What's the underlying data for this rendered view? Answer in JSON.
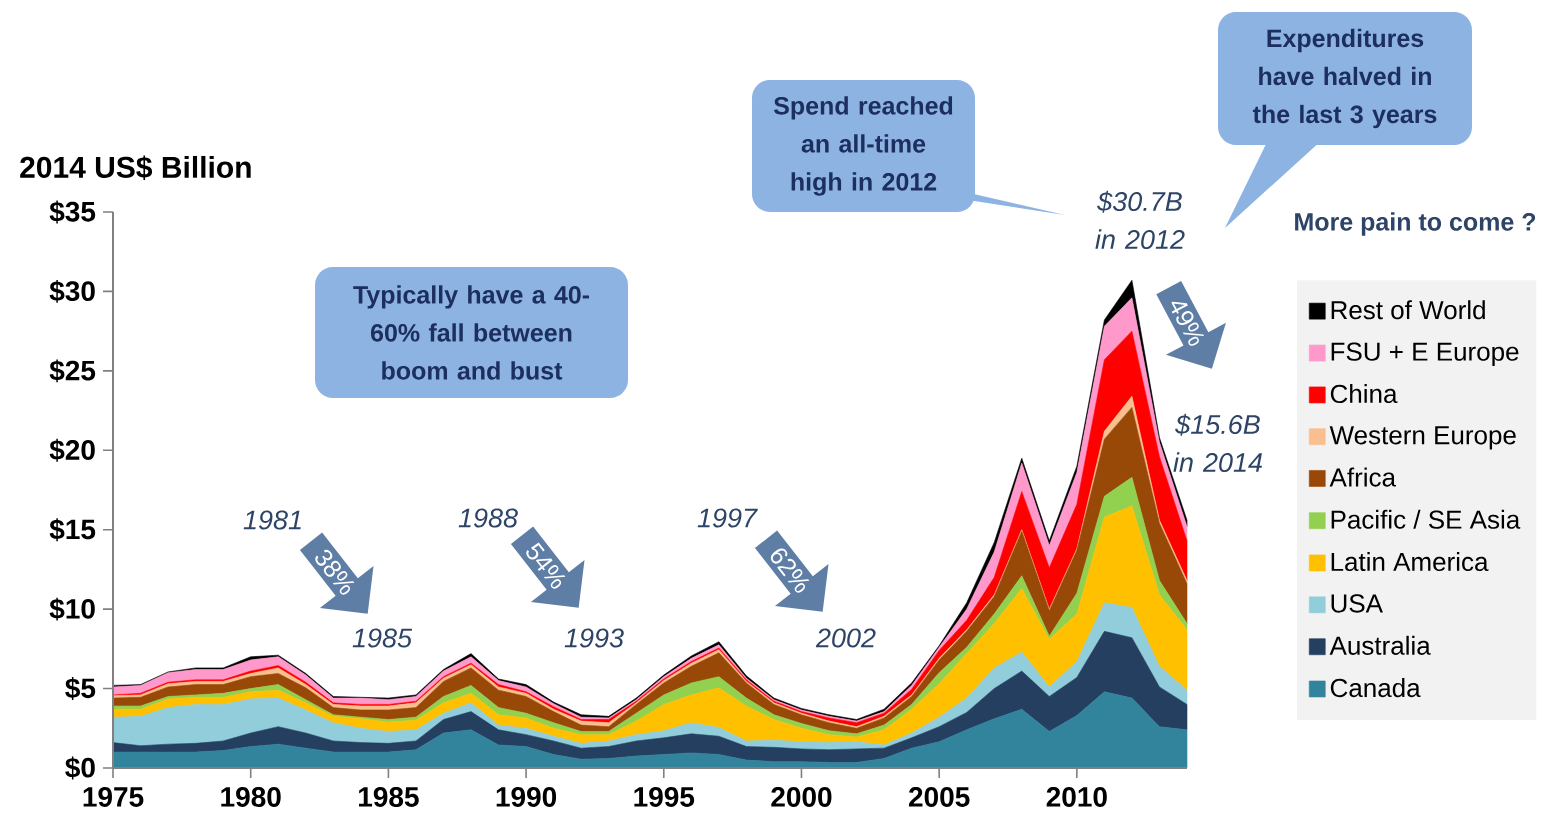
{
  "chart_data": {
    "type": "area",
    "stacked": true,
    "ylabel": "2014 US$ Billion",
    "x": [
      1975,
      1976,
      1977,
      1978,
      1979,
      1980,
      1981,
      1982,
      1983,
      1984,
      1985,
      1986,
      1987,
      1988,
      1989,
      1990,
      1991,
      1992,
      1993,
      1994,
      1995,
      1996,
      1997,
      1998,
      1999,
      2000,
      2001,
      2002,
      2003,
      2004,
      2005,
      2006,
      2007,
      2008,
      2009,
      2010,
      2011,
      2012,
      2013,
      2014
    ],
    "xlim": [
      1975,
      2014
    ],
    "xticks": [
      1975,
      1980,
      1985,
      1990,
      1995,
      2000,
      2005,
      2010
    ],
    "ylim": [
      0,
      35
    ],
    "yticks": [
      {
        "value": 0,
        "label": "$0"
      },
      {
        "value": 5,
        "label": "$5"
      },
      {
        "value": 10,
        "label": "$10"
      },
      {
        "value": 15,
        "label": "$15"
      },
      {
        "value": 20,
        "label": "$20"
      },
      {
        "value": 25,
        "label": "$25"
      },
      {
        "value": 30,
        "label": "$30"
      },
      {
        "value": 35,
        "label": "$35"
      }
    ],
    "legend": "right",
    "series": [
      {
        "name": "Canada",
        "color": "#31849b",
        "values": [
          1.0,
          1.0,
          1.0,
          1.0,
          1.1,
          1.35,
          1.5,
          1.25,
          1.0,
          1.0,
          1.0,
          1.15,
          2.2,
          2.4,
          1.45,
          1.35,
          0.85,
          0.55,
          0.6,
          0.75,
          0.85,
          0.95,
          0.85,
          0.5,
          0.4,
          0.4,
          0.35,
          0.35,
          0.6,
          1.25,
          1.65,
          2.4,
          3.1,
          3.7,
          2.3,
          3.3,
          4.8,
          4.4,
          2.6,
          2.4
        ]
      },
      {
        "name": "Australia",
        "color": "#243f60",
        "values": [
          0.6,
          0.4,
          0.5,
          0.55,
          0.6,
          0.85,
          1.1,
          0.95,
          0.7,
          0.6,
          0.55,
          0.55,
          0.85,
          1.15,
          0.95,
          0.75,
          0.85,
          0.7,
          0.75,
          0.95,
          1.05,
          1.2,
          1.15,
          0.85,
          0.9,
          0.8,
          0.8,
          0.85,
          0.65,
          0.65,
          0.95,
          1.1,
          1.9,
          2.4,
          2.2,
          2.4,
          3.8,
          3.8,
          2.5,
          1.6
        ]
      },
      {
        "name": "USA",
        "color": "#92cddc",
        "values": [
          1.6,
          1.85,
          2.3,
          2.45,
          2.3,
          2.15,
          1.8,
          1.45,
          1.15,
          0.9,
          0.75,
          0.7,
          0.4,
          0.55,
          0.3,
          0.4,
          0.3,
          0.3,
          0.35,
          0.4,
          0.45,
          0.7,
          0.55,
          0.35,
          0.45,
          0.45,
          0.45,
          0.45,
          0.2,
          0.3,
          0.6,
          0.9,
          1.3,
          1.2,
          0.6,
          1.0,
          1.8,
          1.9,
          1.3,
          0.9
        ]
      },
      {
        "name": "Latin America",
        "color": "#ffc000",
        "values": [
          0.5,
          0.45,
          0.55,
          0.45,
          0.45,
          0.45,
          0.5,
          0.45,
          0.4,
          0.6,
          0.6,
          0.6,
          0.65,
          0.6,
          0.65,
          0.65,
          0.5,
          0.55,
          0.4,
          0.85,
          1.65,
          1.75,
          2.5,
          2.2,
          1.3,
          0.85,
          0.5,
          0.3,
          0.95,
          1.5,
          2.1,
          2.8,
          2.8,
          4.0,
          3.0,
          3.0,
          5.4,
          6.4,
          4.5,
          3.8
        ]
      },
      {
        "name": "Pacific / SE Asia",
        "color": "#92d050",
        "values": [
          0.2,
          0.2,
          0.15,
          0.15,
          0.25,
          0.2,
          0.35,
          0.2,
          0.1,
          0.1,
          0.15,
          0.2,
          0.4,
          0.5,
          0.45,
          0.3,
          0.35,
          0.2,
          0.2,
          0.5,
          0.6,
          0.75,
          0.7,
          0.5,
          0.3,
          0.3,
          0.25,
          0.2,
          0.3,
          0.3,
          0.7,
          0.4,
          0.6,
          0.8,
          0.2,
          1.3,
          1.3,
          1.8,
          0.9,
          0.4
        ]
      },
      {
        "name": "Africa",
        "color": "#984807",
        "values": [
          0.5,
          0.55,
          0.6,
          0.65,
          0.55,
          0.75,
          0.7,
          0.75,
          0.45,
          0.45,
          0.6,
          0.6,
          0.95,
          1.1,
          1.1,
          1.05,
          0.7,
          0.4,
          0.3,
          0.55,
          0.75,
          1.05,
          1.5,
          0.95,
          0.65,
          0.55,
          0.5,
          0.35,
          0.45,
          0.5,
          0.8,
          1.0,
          1.1,
          2.8,
          1.6,
          2.7,
          3.6,
          4.4,
          3.6,
          2.5
        ]
      },
      {
        "name": "Western Europe",
        "color": "#fabf8f",
        "values": [
          0.15,
          0.15,
          0.2,
          0.2,
          0.2,
          0.2,
          0.35,
          0.2,
          0.2,
          0.25,
          0.25,
          0.3,
          0.2,
          0.2,
          0.2,
          0.2,
          0.15,
          0.25,
          0.25,
          0.1,
          0.15,
          0.2,
          0.2,
          0.1,
          0.1,
          0.1,
          0.1,
          0.1,
          0.1,
          0.1,
          0.1,
          0.1,
          0.1,
          0.1,
          0.1,
          0.1,
          0.5,
          0.7,
          0.2,
          0.2
        ]
      },
      {
        "name": "China",
        "color": "#ff0000",
        "values": [
          0.05,
          0.1,
          0.1,
          0.1,
          0.1,
          0.15,
          0.15,
          0.15,
          0.1,
          0.1,
          0.1,
          0.1,
          0.1,
          0.1,
          0.15,
          0.1,
          0.15,
          0.1,
          0.2,
          0.1,
          0.1,
          0.1,
          0.1,
          0.1,
          0.1,
          0.1,
          0.2,
          0.25,
          0.2,
          0.35,
          0.5,
          0.6,
          1.1,
          2.4,
          2.6,
          2.8,
          4.5,
          4.1,
          4.0,
          2.5
        ]
      },
      {
        "name": "FSU + E Europe",
        "color": "#ff99cc",
        "values": [
          0.5,
          0.5,
          0.6,
          0.65,
          0.65,
          0.7,
          0.55,
          0.45,
          0.3,
          0.4,
          0.3,
          0.3,
          0.35,
          0.4,
          0.25,
          0.3,
          0.2,
          0.15,
          0.1,
          0.1,
          0.15,
          0.2,
          0.2,
          0.1,
          0.1,
          0.1,
          0.1,
          0.1,
          0.1,
          0.25,
          0.2,
          0.7,
          1.6,
          1.8,
          1.4,
          2.0,
          2.1,
          2.1,
          0.9,
          0.9
        ]
      },
      {
        "name": "Rest of World",
        "color": "#000000",
        "values": [
          0.1,
          0.05,
          0.05,
          0.1,
          0.1,
          0.2,
          0.1,
          0.1,
          0.1,
          0.05,
          0.1,
          0.1,
          0.1,
          0.2,
          0.1,
          0.15,
          0.1,
          0.15,
          0.1,
          0.1,
          0.1,
          0.15,
          0.2,
          0.15,
          0.1,
          0.1,
          0.1,
          0.1,
          0.15,
          0.15,
          0.1,
          0.4,
          0.6,
          0.3,
          0.3,
          0.4,
          0.4,
          1.1,
          0.3,
          0.4
        ]
      }
    ],
    "annotations": [
      "Typically have a 40-60% fall between boom and bust",
      "Spend reached an all-time high in 2012",
      "Expenditures have halved in the last 3 years",
      "More pain to come ?",
      "1981",
      "1985",
      "1988",
      "1993",
      "1997",
      "2002",
      "$30.7B in 2012",
      "$15.6B in 2014",
      "38%",
      "54%",
      "62%",
      "49%"
    ]
  }
}
